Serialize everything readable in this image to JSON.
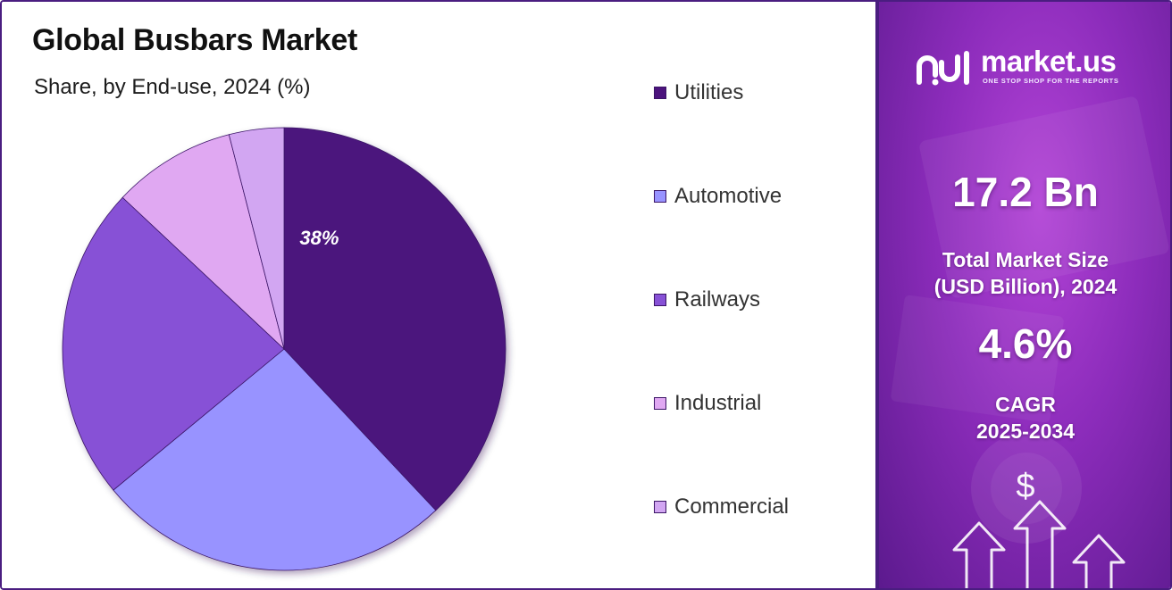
{
  "title": "Global Busbars Market",
  "subtitle": "Share, by End-use, 2024 (%)",
  "chart_data": {
    "type": "pie",
    "categories": [
      "Utilities",
      "Automotive",
      "Railways",
      "Industrial",
      "Commercial"
    ],
    "values": [
      38,
      26,
      23,
      9,
      4
    ],
    "data_labels": [
      "38%",
      "",
      "",
      "",
      ""
    ],
    "legend_placement": "right",
    "colors": [
      "#4c137d",
      "#9893ff",
      "#8751d6",
      "#e0a8f2",
      "#d2a6f2"
    ]
  },
  "brand": {
    "name": "market.us",
    "tagline": "ONE STOP SHOP FOR THE REPORTS",
    "icon": "market-us-logo-icon"
  },
  "stats": {
    "market_size_value": "17.2 Bn",
    "market_size_label_line1": "Total Market Size",
    "market_size_label_line2": "(USD Billion), 2024",
    "cagr_value": "4.6%",
    "cagr_label_line1": "CAGR",
    "cagr_label_line2": "2025-2034"
  },
  "decoration": {
    "dollar_symbol": "$",
    "icons": [
      "dollar-icon",
      "arrow-up-icon"
    ]
  },
  "theme": {
    "frame_border": "#4a1d80",
    "panel_dark": "#5c1a8e",
    "panel_light": "#b243d6"
  }
}
